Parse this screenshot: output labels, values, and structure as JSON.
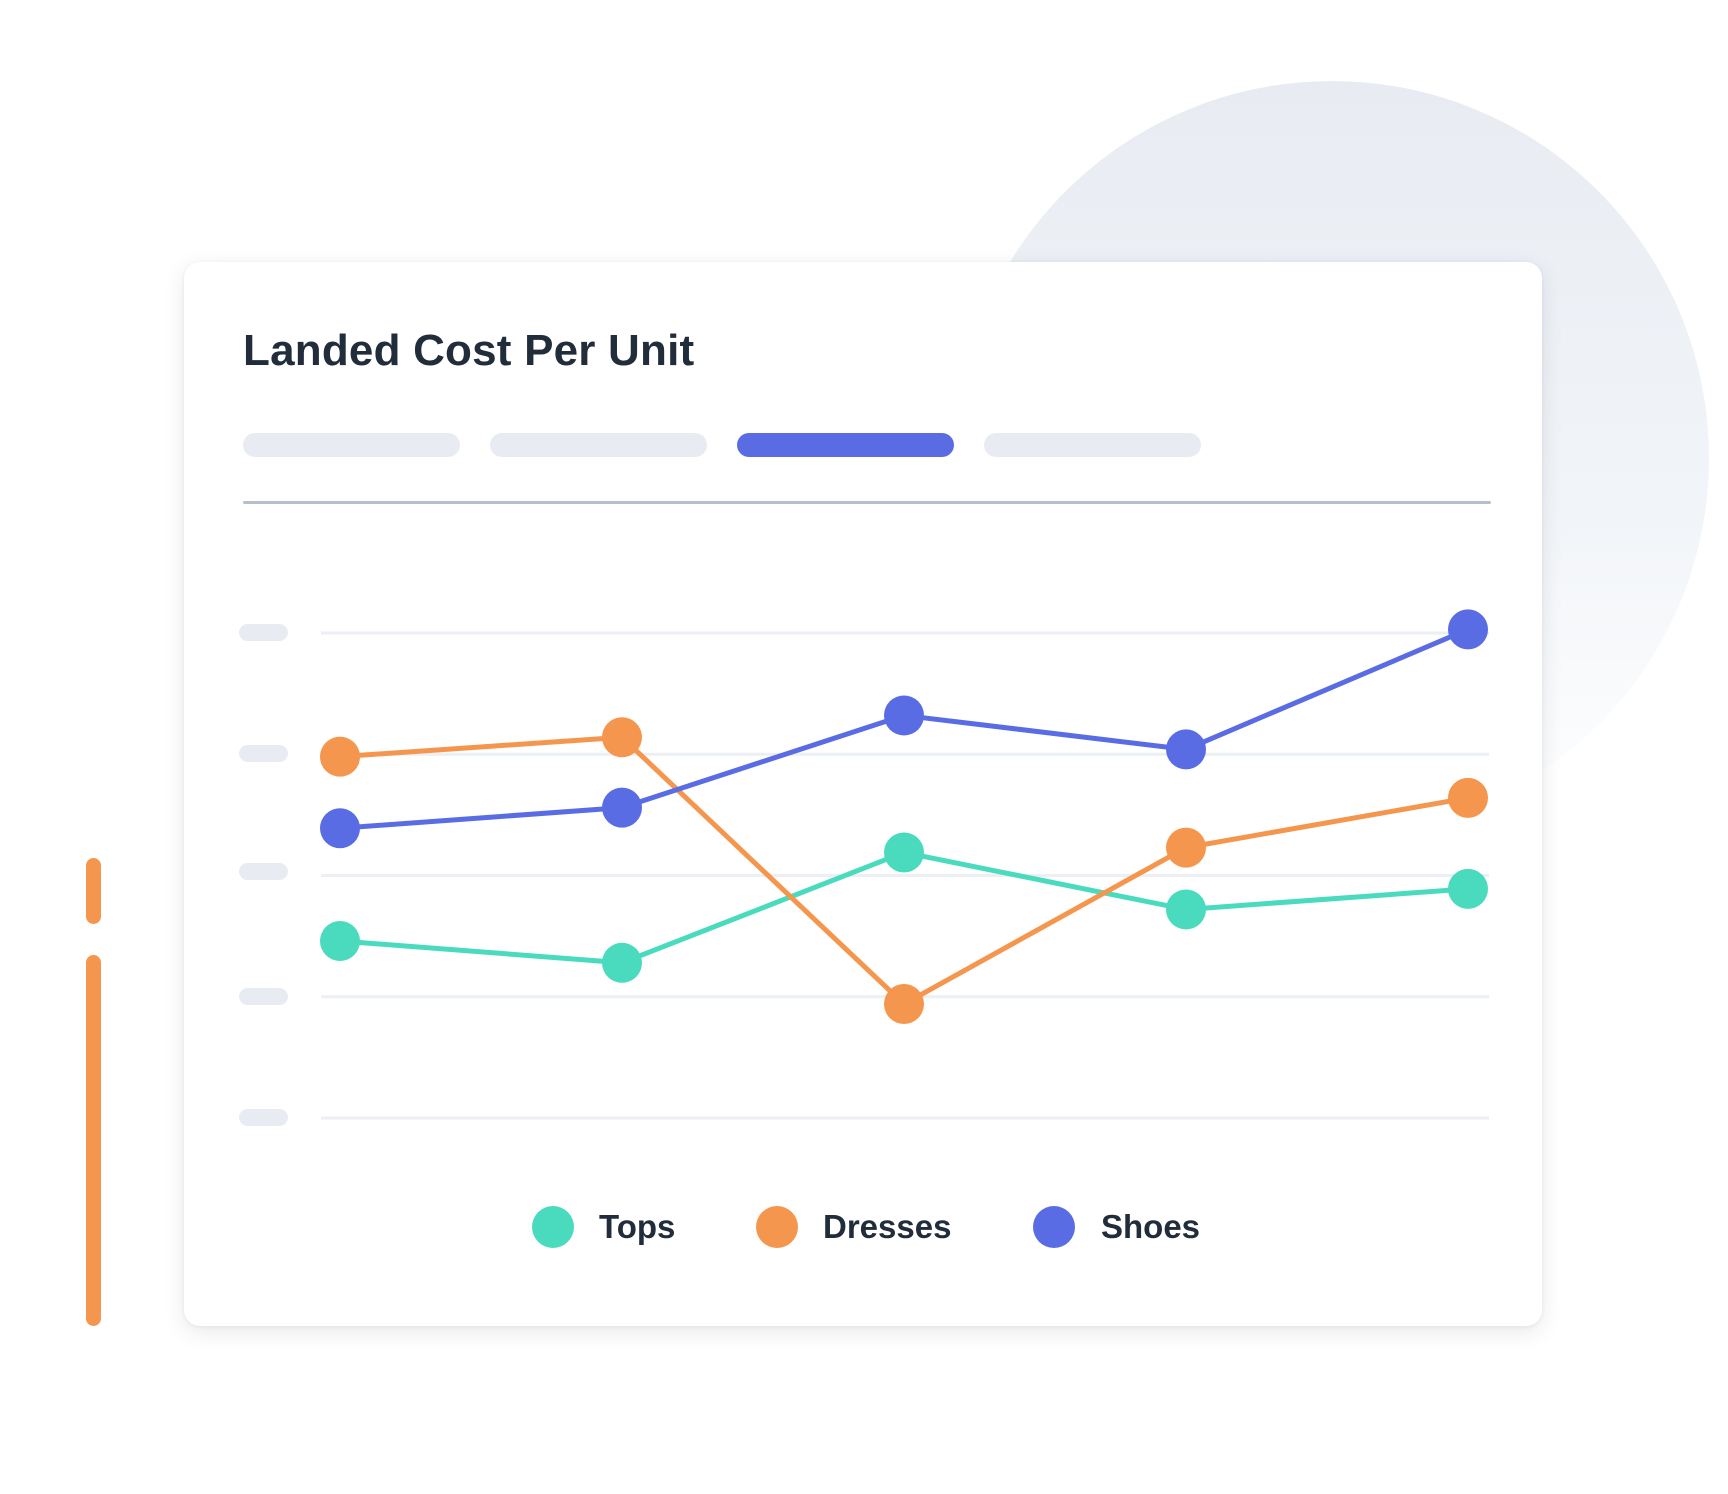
{
  "card": {
    "title": "Landed Cost Per Unit",
    "tabs": [
      {
        "label": "",
        "active": false
      },
      {
        "label": "",
        "active": false
      },
      {
        "label": "",
        "active": true
      },
      {
        "label": "",
        "active": false
      }
    ]
  },
  "colors": {
    "tops": "#4adbbf",
    "dresses": "#f5964e",
    "shoes": "#5a6ce4",
    "text": "#222d3b",
    "placeholder": "#e8ecf2",
    "gridline": "#eceff4",
    "divider": "#b6c0cc",
    "background_circle": "#e8ecf2"
  },
  "legend": [
    {
      "label": "Tops",
      "color": "#4adbbf"
    },
    {
      "label": "Dresses",
      "color": "#f5964e"
    },
    {
      "label": "Shoes",
      "color": "#5a6ce4"
    }
  ],
  "chart_data": {
    "type": "line",
    "title": "Landed Cost Per Unit",
    "xlabel": "",
    "ylabel": "",
    "categories": [
      "1",
      "2",
      "3",
      "4",
      "5"
    ],
    "x_tick_labels_visible": false,
    "y_tick_labels_visible": false,
    "y_tick_count": 5,
    "ylim": [
      0,
      4
    ],
    "grid": true,
    "legend_position": "bottom",
    "series": [
      {
        "name": "Tops",
        "color": "#4adbbf",
        "values": [
          1.46,
          1.28,
          2.19,
          1.72,
          1.89
        ]
      },
      {
        "name": "Dresses",
        "color": "#f5964e",
        "values": [
          2.98,
          3.14,
          0.94,
          2.23,
          2.64
        ]
      },
      {
        "name": "Shoes",
        "color": "#5a6ce4",
        "values": [
          2.39,
          2.56,
          3.32,
          3.04,
          4.03
        ]
      }
    ]
  }
}
